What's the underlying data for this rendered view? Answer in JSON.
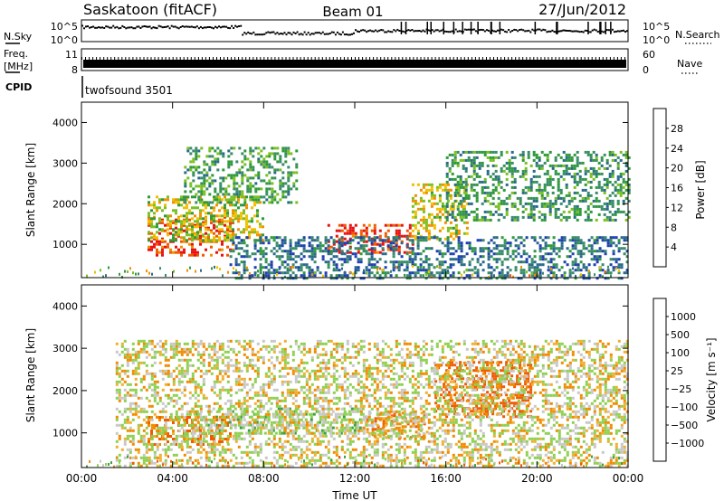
{
  "header": {
    "station_title": "Saskatoon (fitACF)",
    "beam_label": "Beam 01",
    "date_label": "27/Jun/2012"
  },
  "status_panels": {
    "nsky_label": "N.Sky",
    "nsearch_label": "N.Search",
    "noise_ticks": [
      "10^5",
      "10^0"
    ],
    "freq_label_line1": "Freq.",
    "freq_label_line2": "[MHz]",
    "freq_ticks": [
      "11",
      "8"
    ],
    "nave_label": "Nave",
    "nave_ticks": [
      "60",
      "0"
    ],
    "cpid_label": "CPID",
    "cpid_value": "twofsound 3501"
  },
  "colors": {
    "power_scale": [
      "#1f1fe0",
      "#2040b0",
      "#2a6a8a",
      "#3a8c6a",
      "#2e9a3a",
      "#7ac020",
      "#f0c000",
      "#f09000",
      "#f05a00",
      "#e81010"
    ],
    "velocity_scale": [
      "#e81010",
      "#f05a00",
      "#f08c00",
      "#f0b030",
      "#c8c8c8",
      "#c8c8c8",
      "#8ed050",
      "#3aa040",
      "#2e7070",
      "#2060c0"
    ],
    "ground_scatter": "#a0a0a0"
  },
  "chart_data": [
    {
      "type": "heatmap",
      "title": "Saskatoon (fitACF)  Beam 01  27/Jun/2012",
      "panel": "power",
      "xlabel": "Time UT",
      "ylabel": "Slant Range [km]",
      "x_ticks": [
        "00:00",
        "04:00",
        "08:00",
        "12:00",
        "16:00",
        "20:00",
        "00:00"
      ],
      "x_range_hours": [
        0,
        24
      ],
      "y_ticks": [
        1000,
        2000,
        3000,
        4000
      ],
      "y_range_km": [
        180,
        4500
      ],
      "colorbar": {
        "label": "Power [dB]",
        "ticks": [
          4,
          8,
          12,
          16,
          20,
          24,
          28
        ],
        "range": [
          0,
          30
        ]
      },
      "scatter_regions": [
        {
          "t_start": 2.9,
          "t_end": 6.6,
          "r_min": 700,
          "r_max": 1700,
          "value": 27
        },
        {
          "t_start": 2.9,
          "t_end": 8.0,
          "r_min": 1100,
          "r_max": 2200,
          "value": 18
        },
        {
          "t_start": 10.8,
          "t_end": 14.6,
          "r_min": 800,
          "r_max": 1500,
          "value": 28
        },
        {
          "t_start": 14.5,
          "t_end": 17.0,
          "r_min": 1100,
          "r_max": 2500,
          "value": 19
        },
        {
          "t_start": 16.0,
          "t_end": 24.0,
          "r_min": 1600,
          "r_max": 3300,
          "value": 12
        },
        {
          "t_start": 4.5,
          "t_end": 9.5,
          "r_min": 2000,
          "r_max": 3400,
          "value": 13
        },
        {
          "t_start": 6.5,
          "t_end": 24.0,
          "r_min": 180,
          "r_max": 1200,
          "value": 8
        }
      ]
    },
    {
      "type": "heatmap",
      "panel": "velocity",
      "xlabel": "Time UT",
      "ylabel": "Slant Range [km]",
      "x_ticks": [
        "00:00",
        "04:00",
        "08:00",
        "12:00",
        "16:00",
        "20:00",
        "00:00"
      ],
      "x_range_hours": [
        0,
        24
      ],
      "y_ticks": [
        1000,
        2000,
        3000,
        4000
      ],
      "y_range_km": [
        180,
        4500
      ],
      "colorbar": {
        "label": "Velocity [m s⁻¹]",
        "ticks": [
          "1000",
          "500",
          "100",
          "25",
          "−25",
          "−100",
          "−500",
          "−1000"
        ],
        "range": [
          -1000,
          1000
        ]
      },
      "scatter_regions": [
        {
          "t_start": 2.9,
          "t_end": 6.5,
          "r_min": 700,
          "r_max": 1400,
          "value": -120
        },
        {
          "t_start": 4.8,
          "t_end": 12.5,
          "r_min": 1000,
          "r_max": 1600,
          "value": 60
        },
        {
          "t_start": 12.5,
          "t_end": 15.2,
          "r_min": 900,
          "r_max": 1500,
          "value": -80
        },
        {
          "t_start": 15.5,
          "t_end": 19.7,
          "r_min": 1400,
          "r_max": 2700,
          "value": -300
        },
        {
          "t_start": 1.5,
          "t_end": 24.0,
          "r_min": 200,
          "r_max": 3200,
          "value": 0
        }
      ]
    }
  ]
}
